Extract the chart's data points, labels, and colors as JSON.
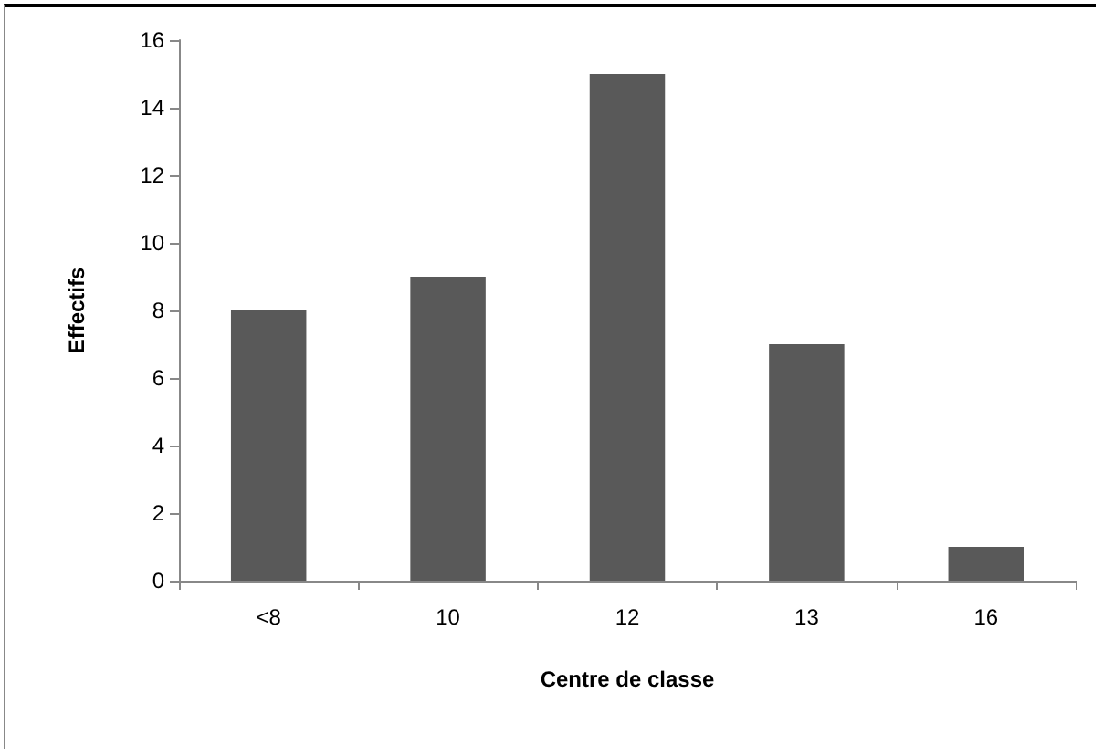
{
  "chart_data": {
    "type": "bar",
    "xlabel": "Centre de classe",
    "ylabel": "Effectifs",
    "categories": [
      "<8",
      "10",
      "12",
      "13",
      "16"
    ],
    "values": [
      8,
      9,
      15,
      7,
      1
    ],
    "color": "#595959",
    "ylim": [
      0,
      16
    ],
    "yticks": [
      0,
      2,
      4,
      6,
      8,
      10,
      12,
      14,
      16
    ],
    "grid": false
  }
}
